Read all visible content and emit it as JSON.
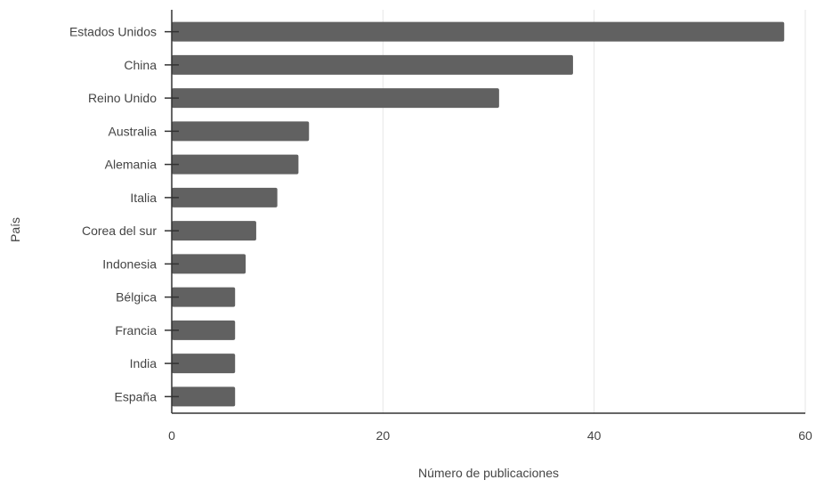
{
  "chart_data": {
    "type": "bar",
    "orientation": "horizontal",
    "title": "",
    "xlabel": "Número de publicaciones",
    "ylabel": "País",
    "categories": [
      "Estados Unidos",
      "China",
      "Reino Unido",
      "Australia",
      "Alemania",
      "Italia",
      "Corea del sur",
      "Indonesia",
      "Bélgica",
      "Francia",
      "India",
      "España"
    ],
    "values": [
      58,
      38,
      31,
      13,
      12,
      10,
      8,
      7,
      6,
      6,
      6,
      6
    ],
    "xlim": [
      0,
      60
    ],
    "xticks": [
      "0",
      "20",
      "40",
      "60"
    ],
    "grid": true,
    "bar_color": "#616161",
    "grid_color": "#e6e6e6",
    "axis_color": "#333333"
  }
}
